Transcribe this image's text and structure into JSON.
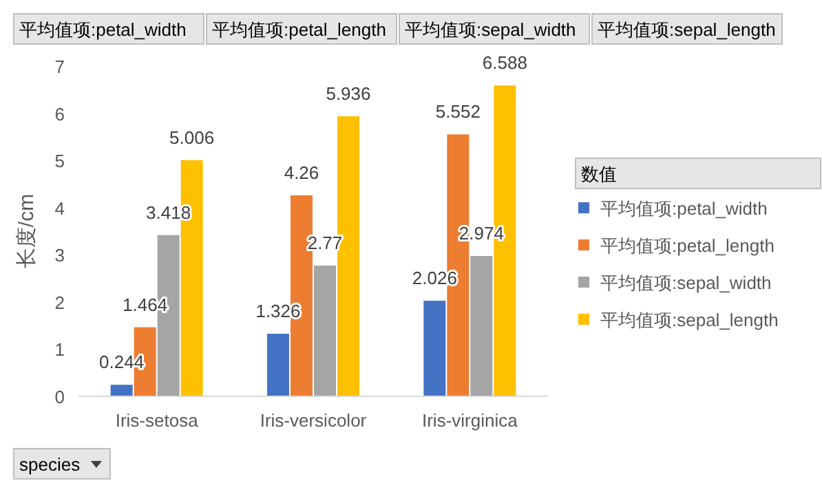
{
  "chart_data": {
    "type": "bar",
    "ylabel": "长度/cm",
    "xlabel": "species",
    "legend_title": "数值",
    "legend": "right",
    "grid": false,
    "data_labels": true,
    "categories": [
      "Iris-setosa",
      "Iris-versicolor",
      "Iris-virginica"
    ],
    "series": [
      {
        "name": "平均值项:petal_width",
        "color": "#4472c4",
        "values": [
          0.244,
          1.326,
          2.026
        ]
      },
      {
        "name": "平均值项:petal_length",
        "color": "#ed7d31",
        "values": [
          1.464,
          4.26,
          5.552
        ]
      },
      {
        "name": "平均值项:sepal_width",
        "color": "#a5a5a5",
        "values": [
          3.418,
          2.77,
          2.974
        ]
      },
      {
        "name": "平均值项:sepal_length",
        "color": "#ffc000",
        "values": [
          5.006,
          5.936,
          6.588
        ]
      }
    ],
    "ylim": [
      0,
      7
    ],
    "yticks": [
      0,
      1,
      2,
      3,
      4,
      5,
      6,
      7
    ],
    "annotations": [
      "平均值项:petal_width",
      "平均值项:petal_length",
      "平均值项:sepal_width",
      "平均值项:sepal_length"
    ]
  }
}
